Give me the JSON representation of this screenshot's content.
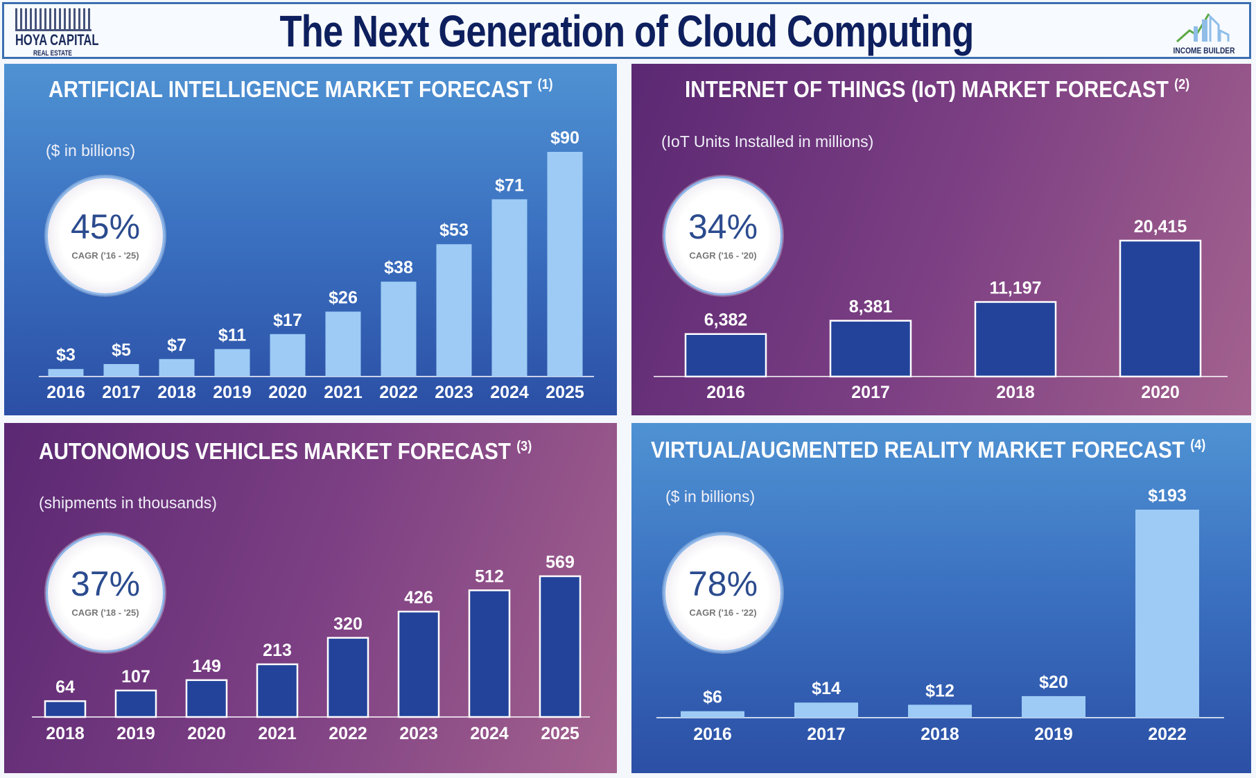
{
  "header": {
    "title": "The Next Generation of Cloud Computing",
    "logo_left": "HOYA CAPITAL",
    "logo_left_sub": "REAL ESTATE",
    "logo_right": "INCOME BUILDER"
  },
  "chart_data": [
    {
      "type": "bar",
      "title": "ARTIFICIAL INTELLIGENCE MARKET FORECAST",
      "footnote": "(1)",
      "subtitle": "($ in billions)",
      "cagr": "45%",
      "cagr_label": "CAGR ('16 - '25)",
      "categories": [
        "2016",
        "2017",
        "2018",
        "2019",
        "2020",
        "2021",
        "2022",
        "2023",
        "2024",
        "2025"
      ],
      "values": [
        3,
        5,
        7,
        11,
        17,
        26,
        38,
        53,
        71,
        90
      ],
      "labels": [
        "$3",
        "$5",
        "$7",
        "$11",
        "$17",
        "$26",
        "$38",
        "$53",
        "$71",
        "$90"
      ],
      "bar_color": "#9dcbf5",
      "background": "blue"
    },
    {
      "type": "bar",
      "title": "INTERNET OF THINGS (IoT) MARKET FORECAST",
      "footnote": "(2)",
      "subtitle": "(IoT Units Installed in millions)",
      "cagr": "34%",
      "cagr_label": "CAGR ('16 - '20)",
      "categories": [
        "2016",
        "2017",
        "2018",
        "2020"
      ],
      "values": [
        6382,
        8381,
        11197,
        20415
      ],
      "labels": [
        "6,382",
        "8,381",
        "11,197",
        "20,415"
      ],
      "bar_color": "#23439a",
      "background": "purple"
    },
    {
      "type": "bar",
      "title": "AUTONOMOUS VEHICLES MARKET FORECAST",
      "footnote": "(3)",
      "subtitle": "(shipments in thousands)",
      "cagr": "37%",
      "cagr_label": "CAGR ('18 - '25)",
      "categories": [
        "2018",
        "2019",
        "2020",
        "2021",
        "2022",
        "2023",
        "2024",
        "2025"
      ],
      "values": [
        64,
        107,
        149,
        213,
        320,
        426,
        512,
        569
      ],
      "labels": [
        "64",
        "107",
        "149",
        "213",
        "320",
        "426",
        "512",
        "569"
      ],
      "bar_color": "#23439a",
      "background": "purple"
    },
    {
      "type": "bar",
      "title": "VIRTUAL/AUGMENTED REALITY MARKET FORECAST",
      "footnote": "(4)",
      "subtitle": "($ in billions)",
      "cagr": "78%",
      "cagr_label": "CAGR ('16 - '22)",
      "categories": [
        "2016",
        "2017",
        "2018",
        "2019",
        "2022"
      ],
      "values": [
        6,
        14,
        12,
        20,
        193
      ],
      "labels": [
        "$6",
        "$14",
        "$12",
        "$20",
        "$193"
      ],
      "bar_color": "#9dcbf5",
      "background": "blue"
    }
  ]
}
